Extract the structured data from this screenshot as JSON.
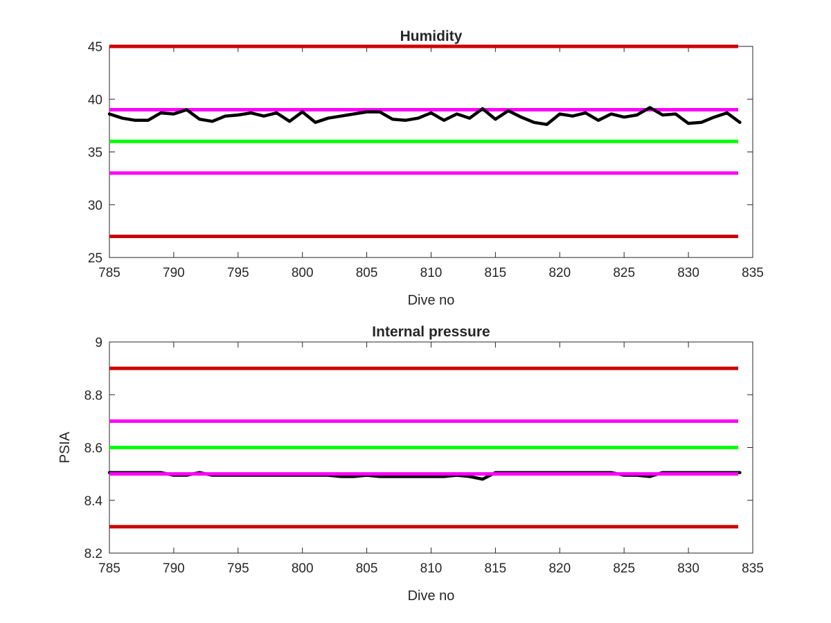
{
  "chart_data": [
    {
      "type": "line",
      "title": "Humidity",
      "xlabel": "Dive no",
      "ylabel": "",
      "xlim": [
        785,
        835
      ],
      "ylim": [
        25,
        45
      ],
      "xticks": [
        785,
        790,
        795,
        800,
        805,
        810,
        815,
        820,
        825,
        830,
        835
      ],
      "yticks": [
        25,
        30,
        35,
        40,
        45
      ],
      "grid": false,
      "colors": {
        "red": "#cc0000",
        "magenta": "#ff00ff",
        "green": "#00ff00",
        "data": "#000000"
      },
      "threshold_lines": [
        {
          "y": 45,
          "color": "#cc0000"
        },
        {
          "y": 39,
          "color": "#ff00ff"
        },
        {
          "y": 36,
          "color": "#00ff00"
        },
        {
          "y": 33,
          "color": "#ff00ff"
        },
        {
          "y": 27,
          "color": "#cc0000"
        }
      ],
      "series": [
        {
          "color": "#000000",
          "x": [
            785,
            786,
            787,
            788,
            789,
            790,
            791,
            792,
            793,
            794,
            795,
            796,
            797,
            798,
            799,
            800,
            801,
            802,
            803,
            804,
            805,
            806,
            807,
            808,
            809,
            810,
            811,
            812,
            813,
            814,
            815,
            816,
            817,
            818,
            819,
            820,
            821,
            822,
            823,
            824,
            825,
            826,
            827,
            828,
            829,
            830,
            831,
            832,
            833,
            834
          ],
          "y": [
            38.6,
            38.2,
            38.0,
            38.0,
            38.7,
            38.6,
            39.0,
            38.1,
            37.9,
            38.4,
            38.5,
            38.7,
            38.4,
            38.7,
            37.9,
            38.8,
            37.8,
            38.2,
            38.4,
            38.6,
            38.8,
            38.8,
            38.1,
            38.0,
            38.2,
            38.7,
            38.0,
            38.6,
            38.2,
            39.1,
            38.1,
            38.9,
            38.3,
            37.8,
            37.6,
            38.6,
            38.4,
            38.7,
            38.0,
            38.6,
            38.3,
            38.5,
            39.2,
            38.5,
            38.6,
            37.7,
            37.8,
            38.3,
            38.7,
            37.8
          ]
        }
      ]
    },
    {
      "type": "line",
      "title": "Internal pressure",
      "xlabel": "Dive no",
      "ylabel": "PSIA",
      "xlim": [
        785,
        835
      ],
      "ylim": [
        8.2,
        9
      ],
      "xticks": [
        785,
        790,
        795,
        800,
        805,
        810,
        815,
        820,
        825,
        830,
        835
      ],
      "yticks": [
        "8.2",
        "8.4",
        "8.6",
        "8.8",
        "9"
      ],
      "grid": false,
      "colors": {
        "red": "#cc0000",
        "magenta": "#ff00ff",
        "green": "#00ff00",
        "data": "#000000"
      },
      "threshold_lines": [
        {
          "y": 8.9,
          "color": "#cc0000"
        },
        {
          "y": 8.7,
          "color": "#ff00ff"
        },
        {
          "y": 8.6,
          "color": "#00ff00"
        },
        {
          "y": 8.3,
          "color": "#cc0000"
        }
      ],
      "series": [
        {
          "color": "#000000",
          "x": [
            785,
            786,
            787,
            788,
            789,
            790,
            791,
            792,
            793,
            794,
            795,
            796,
            797,
            798,
            799,
            800,
            801,
            802,
            803,
            804,
            805,
            806,
            807,
            808,
            809,
            810,
            811,
            812,
            813,
            814,
            815,
            816,
            817,
            818,
            819,
            820,
            821,
            822,
            823,
            824,
            825,
            826,
            827,
            828,
            829,
            830,
            831,
            832,
            833,
            834
          ],
          "y": [
            8.505,
            8.505,
            8.505,
            8.505,
            8.505,
            8.495,
            8.495,
            8.505,
            8.495,
            8.495,
            8.495,
            8.495,
            8.495,
            8.495,
            8.495,
            8.495,
            8.495,
            8.495,
            8.49,
            8.49,
            8.495,
            8.49,
            8.49,
            8.49,
            8.49,
            8.49,
            8.49,
            8.495,
            8.49,
            8.48,
            8.505,
            8.505,
            8.505,
            8.505,
            8.505,
            8.505,
            8.505,
            8.505,
            8.505,
            8.505,
            8.495,
            8.495,
            8.49,
            8.505,
            8.505,
            8.505,
            8.505,
            8.505,
            8.505,
            8.505
          ]
        }
      ],
      "overlay_lines": [
        {
          "y": 8.5,
          "color": "#ff00ff"
        }
      ]
    }
  ]
}
